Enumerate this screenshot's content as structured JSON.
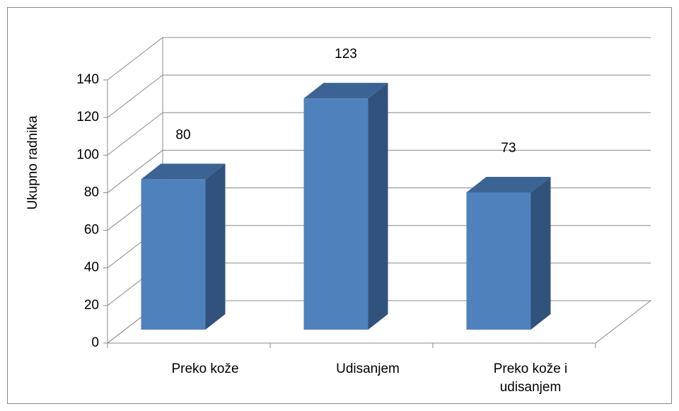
{
  "chart_data": {
    "type": "bar3d",
    "y_label": "Ukupno radnika",
    "categories": [
      "Preko kože",
      "Udisanjem",
      "Preko kože i udisanjem"
    ],
    "values": [
      80,
      123,
      73
    ],
    "color": "#4f81bd",
    "ylim": [
      0,
      140
    ],
    "yticks": [
      0,
      20,
      40,
      60,
      80,
      100,
      120,
      140
    ],
    "grid": true
  }
}
